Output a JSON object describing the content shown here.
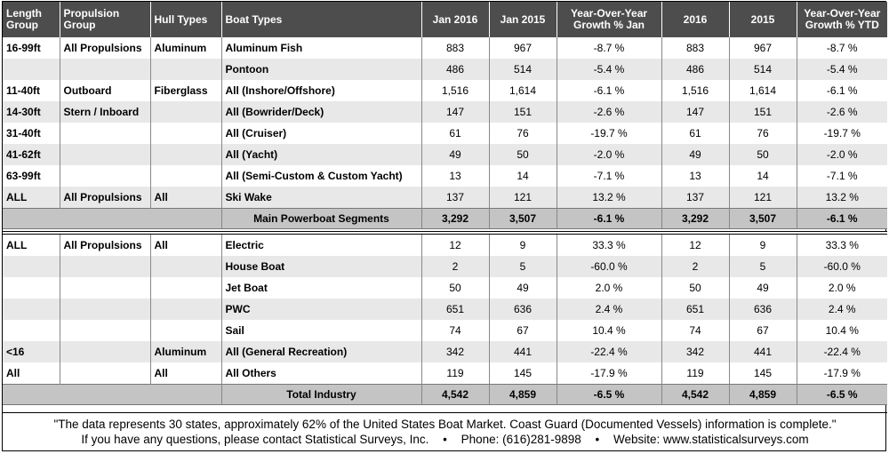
{
  "headers": [
    "Length Group",
    "Propulsion Group",
    "Hull Types",
    "Boat Types",
    "Jan 2016",
    "Jan 2015",
    "Year-Over-Year Growth % Jan",
    "2016",
    "2015",
    "Year-Over-Year Growth % YTD"
  ],
  "headers_split": {
    "h0a": "Length",
    "h0b": "Group",
    "h1a": "Propulsion",
    "h1b": "Group",
    "h2": "Hull Types",
    "h3": "Boat Types",
    "h4": "Jan 2016",
    "h5": "Jan 2015",
    "h6a": "Year-Over-Year",
    "h6b": "Growth % Jan",
    "h7": "2016",
    "h8": "2015",
    "h9a": "Year-Over-Year",
    "h9b": "Growth % YTD"
  },
  "section1": [
    [
      "16-99ft",
      "All Propulsions",
      "Aluminum",
      "Aluminum Fish",
      "883",
      "967",
      "-8.7 %",
      "883",
      "967",
      "-8.7 %"
    ],
    [
      "",
      "",
      "",
      "Pontoon",
      "486",
      "514",
      "-5.4 %",
      "486",
      "514",
      "-5.4 %"
    ],
    [
      "11-40ft",
      "Outboard",
      "Fiberglass",
      "All (Inshore/Offshore)",
      "1,516",
      "1,614",
      "-6.1 %",
      "1,516",
      "1,614",
      "-6.1 %"
    ],
    [
      "14-30ft",
      "Stern / Inboard",
      "",
      "All (Bowrider/Deck)",
      "147",
      "151",
      "-2.6 %",
      "147",
      "151",
      "-2.6 %"
    ],
    [
      "31-40ft",
      "",
      "",
      "All (Cruiser)",
      "61",
      "76",
      "-19.7 %",
      "61",
      "76",
      "-19.7 %"
    ],
    [
      "41-62ft",
      "",
      "",
      "All (Yacht)",
      "49",
      "50",
      "-2.0 %",
      "49",
      "50",
      "-2.0 %"
    ],
    [
      "63-99ft",
      "",
      "",
      "All (Semi-Custom & Custom Yacht)",
      "13",
      "14",
      "-7.1 %",
      "13",
      "14",
      "-7.1 %"
    ],
    [
      "ALL",
      "All Propulsions",
      "All",
      "Ski Wake",
      "137",
      "121",
      "13.2 %",
      "137",
      "121",
      "13.2 %"
    ]
  ],
  "section1_total": [
    "Main Powerboat Segments",
    "3,292",
    "3,507",
    "-6.1 %",
    "3,292",
    "3,507",
    "-6.1 %"
  ],
  "section2": [
    [
      "ALL",
      "All Propulsions",
      "All",
      "Electric",
      "12",
      "9",
      "33.3 %",
      "12",
      "9",
      "33.3 %"
    ],
    [
      "",
      "",
      "",
      "House Boat",
      "2",
      "5",
      "-60.0 %",
      "2",
      "5",
      "-60.0 %"
    ],
    [
      "",
      "",
      "",
      "Jet Boat",
      "50",
      "49",
      "2.0 %",
      "50",
      "49",
      "2.0 %"
    ],
    [
      "",
      "",
      "",
      "PWC",
      "651",
      "636",
      "2.4 %",
      "651",
      "636",
      "2.4 %"
    ],
    [
      "",
      "",
      "",
      "Sail",
      "74",
      "67",
      "10.4 %",
      "74",
      "67",
      "10.4 %"
    ],
    [
      "<16",
      "",
      "Aluminum",
      "All (General Recreation)",
      "342",
      "441",
      "-22.4 %",
      "342",
      "441",
      "-22.4 %"
    ],
    [
      "All",
      "",
      "All",
      "All Others",
      "119",
      "145",
      "-17.9 %",
      "119",
      "145",
      "-17.9 %"
    ]
  ],
  "section2_total": [
    "Total Industry",
    "4,542",
    "4,859",
    "-6.5 %",
    "4,542",
    "4,859",
    "-6.5 %"
  ],
  "footer": {
    "line1": "\"The data represents 30 states, approximately 62% of the United States Boat Market. Coast Guard (Documented Vessels) information is complete.\"",
    "contact": "If you have any questions, please contact Statistical Surveys, Inc.",
    "phone": "Phone: (616)281-9898",
    "website": "Website: www.statisticalsurveys.com",
    "bullet": "•"
  },
  "colors": {
    "header_bg": "#4d4d4d",
    "row_shade": "#e8e8e8",
    "total_bg": "#c4c4c4"
  }
}
